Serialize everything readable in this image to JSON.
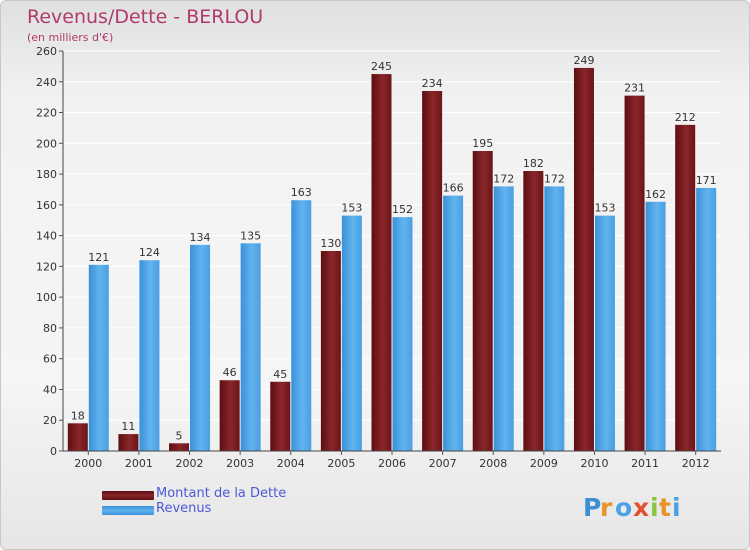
{
  "title": "Revenus/Dette - BERLOU",
  "subtitle": "(en milliers d'€)",
  "logo_text": "Proxiti",
  "colors": {
    "title": "#b03a6a",
    "legend_text": "#4b59d6",
    "debt": "#7a1c22",
    "revenue": "#4aa3e6"
  },
  "chart_data": {
    "type": "bar",
    "categories": [
      "2000",
      "2001",
      "2002",
      "2003",
      "2004",
      "2005",
      "2006",
      "2007",
      "2008",
      "2009",
      "2010",
      "2011",
      "2012"
    ],
    "series": [
      {
        "name": "Montant de la Dette",
        "color": "#7a1c22",
        "values": [
          18,
          11,
          5,
          46,
          45,
          130,
          245,
          234,
          195,
          182,
          249,
          231,
          212
        ]
      },
      {
        "name": "Revenus",
        "color": "#4aa3e6",
        "values": [
          121,
          124,
          134,
          135,
          163,
          153,
          152,
          166,
          172,
          172,
          153,
          162,
          171
        ]
      }
    ],
    "ylim": [
      0,
      260
    ],
    "ytick_step": 20,
    "grid": true,
    "legend_position": "bottom-left"
  }
}
